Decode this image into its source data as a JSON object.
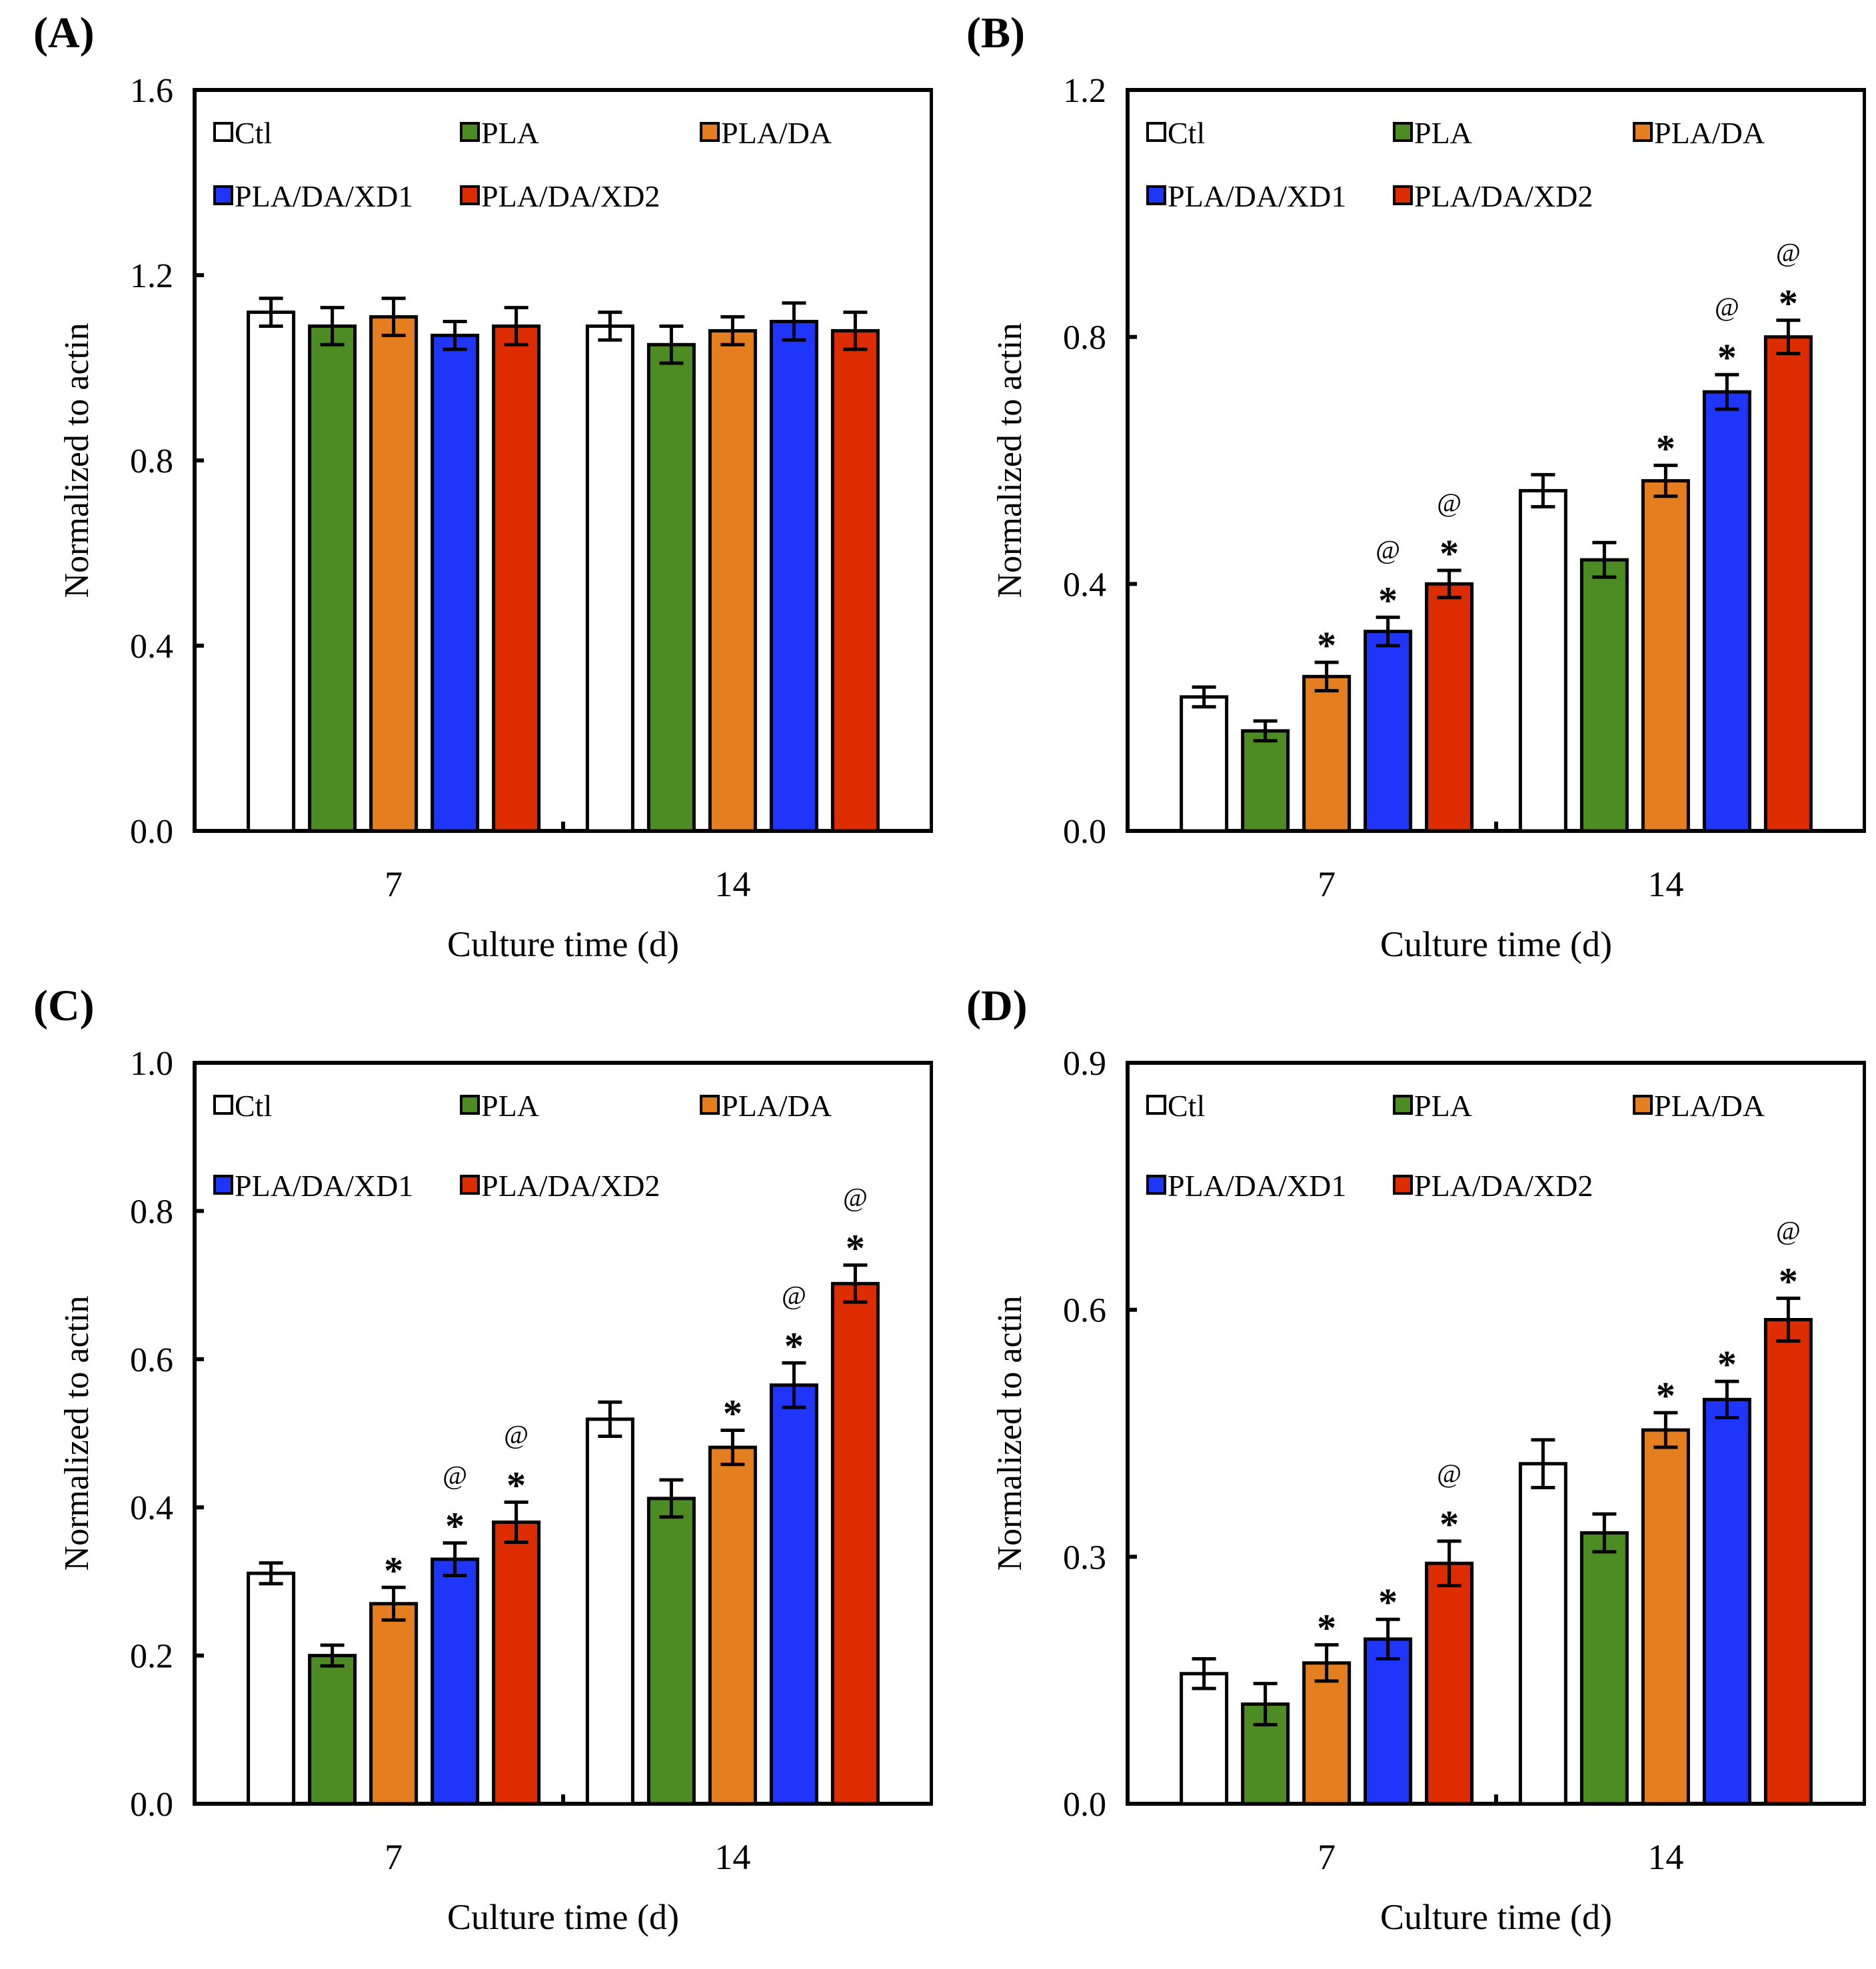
{
  "chart_data": [
    {
      "type": "bar",
      "panel": "(A)",
      "xlabel": "Culture time (d)",
      "ylabel": "Normalized to actin",
      "categories": [
        "7",
        "14"
      ],
      "ylim": [
        0,
        1.6
      ],
      "yticks": [
        "0.0",
        "0.4",
        "0.8",
        "1.2",
        "1.6"
      ],
      "ytick_values": [
        0,
        0.4,
        0.8,
        1.2,
        1.6
      ],
      "legend_position": "top-left",
      "series": [
        {
          "name": "Ctl",
          "color": "#ffffff",
          "values": [
            1.12,
            1.09
          ],
          "errors": [
            0.03,
            0.03
          ],
          "marks": [
            "",
            ""
          ]
        },
        {
          "name": "PLA",
          "color": "#4c8c22",
          "values": [
            1.09,
            1.05
          ],
          "errors": [
            0.04,
            0.04
          ],
          "marks": [
            "",
            ""
          ]
        },
        {
          "name": "PLA/DA",
          "color": "#e57e1f",
          "values": [
            1.11,
            1.08
          ],
          "errors": [
            0.04,
            0.03
          ],
          "marks": [
            "",
            ""
          ]
        },
        {
          "name": "PLA/DA/XD1",
          "color": "#2035fa",
          "values": [
            1.07,
            1.1
          ],
          "errors": [
            0.03,
            0.04
          ],
          "marks": [
            "",
            ""
          ]
        },
        {
          "name": "PLA/DA/XD2",
          "color": "#dd2c00",
          "values": [
            1.09,
            1.08
          ],
          "errors": [
            0.04,
            0.04
          ],
          "marks": [
            "",
            ""
          ]
        }
      ]
    },
    {
      "type": "bar",
      "panel": "(B)",
      "xlabel": "Culture time (d)",
      "ylabel": "Normalized to actin",
      "categories": [
        "7",
        "14"
      ],
      "ylim": [
        0,
        1.2
      ],
      "yticks": [
        "0.0",
        "0.4",
        "0.8",
        "1.2"
      ],
      "ytick_values": [
        0,
        0.4,
        0.8,
        1.2
      ],
      "legend_position": "top-left",
      "series": [
        {
          "name": "Ctl",
          "color": "#ffffff",
          "values": [
            0.217,
            0.551
          ],
          "errors": [
            0.016,
            0.026
          ],
          "marks": [
            "",
            ""
          ]
        },
        {
          "name": "PLA",
          "color": "#4c8c22",
          "values": [
            0.162,
            0.439
          ],
          "errors": [
            0.016,
            0.028
          ],
          "marks": [
            "",
            ""
          ]
        },
        {
          "name": "PLA/DA",
          "color": "#e57e1f",
          "values": [
            0.25,
            0.567
          ],
          "errors": [
            0.023,
            0.025
          ],
          "marks": [
            "*",
            "*"
          ]
        },
        {
          "name": "PLA/DA/XD1",
          "color": "#2035fa",
          "values": [
            0.323,
            0.711
          ],
          "errors": [
            0.023,
            0.028
          ],
          "marks": [
            "*@",
            "*@"
          ]
        },
        {
          "name": "PLA/DA/XD2",
          "color": "#dd2c00",
          "values": [
            0.4,
            0.8
          ],
          "errors": [
            0.022,
            0.027
          ],
          "marks": [
            "*@",
            "*@"
          ]
        }
      ]
    },
    {
      "type": "bar",
      "panel": "(C)",
      "xlabel": "Culture time (d)",
      "ylabel": "Normalized to actin",
      "categories": [
        "7",
        "14"
      ],
      "ylim": [
        0,
        1.0
      ],
      "yticks": [
        "0.0",
        "0.2",
        "0.4",
        "0.6",
        "0.8",
        "1.0"
      ],
      "ytick_values": [
        0,
        0.2,
        0.4,
        0.6,
        0.8,
        1.0
      ],
      "legend_position": "top-left",
      "series": [
        {
          "name": "Ctl",
          "color": "#ffffff",
          "values": [
            0.311,
            0.519
          ],
          "errors": [
            0.014,
            0.023
          ],
          "marks": [
            "",
            ""
          ]
        },
        {
          "name": "PLA",
          "color": "#4c8c22",
          "values": [
            0.2,
            0.412
          ],
          "errors": [
            0.014,
            0.025
          ],
          "marks": [
            "",
            ""
          ]
        },
        {
          "name": "PLA/DA",
          "color": "#e57e1f",
          "values": [
            0.27,
            0.481
          ],
          "errors": [
            0.022,
            0.023
          ],
          "marks": [
            "*",
            "*"
          ]
        },
        {
          "name": "PLA/DA/XD1",
          "color": "#2035fa",
          "values": [
            0.33,
            0.565
          ],
          "errors": [
            0.022,
            0.03
          ],
          "marks": [
            "*@",
            "*@"
          ]
        },
        {
          "name": "PLA/DA/XD2",
          "color": "#dd2c00",
          "values": [
            0.38,
            0.702
          ],
          "errors": [
            0.027,
            0.025
          ],
          "marks": [
            "*@",
            "*@"
          ]
        }
      ]
    },
    {
      "type": "bar",
      "panel": "(D)",
      "xlabel": "Culture time (d)",
      "ylabel": "Normalized to actin",
      "categories": [
        "7",
        "14"
      ],
      "ylim": [
        0,
        0.9
      ],
      "yticks": [
        "0.0",
        "0.3",
        "0.6",
        "0.9"
      ],
      "ytick_values": [
        0,
        0.3,
        0.6,
        0.9
      ],
      "legend_position": "top-left",
      "series": [
        {
          "name": "Ctl",
          "color": "#ffffff",
          "values": [
            0.158,
            0.413
          ],
          "errors": [
            0.018,
            0.029
          ],
          "marks": [
            "",
            ""
          ]
        },
        {
          "name": "PLA",
          "color": "#4c8c22",
          "values": [
            0.121,
            0.329
          ],
          "errors": [
            0.025,
            0.023
          ],
          "marks": [
            "",
            ""
          ]
        },
        {
          "name": "PLA/DA",
          "color": "#e57e1f",
          "values": [
            0.171,
            0.454
          ],
          "errors": [
            0.022,
            0.021
          ],
          "marks": [
            "*",
            "*"
          ]
        },
        {
          "name": "PLA/DA/XD1",
          "color": "#2035fa",
          "values": [
            0.2,
            0.491
          ],
          "errors": [
            0.024,
            0.022
          ],
          "marks": [
            "*",
            "*"
          ]
        },
        {
          "name": "PLA/DA/XD2",
          "color": "#dd2c00",
          "values": [
            0.292,
            0.588
          ],
          "errors": [
            0.027,
            0.026
          ],
          "marks": [
            "*@",
            "*@"
          ]
        }
      ]
    }
  ]
}
